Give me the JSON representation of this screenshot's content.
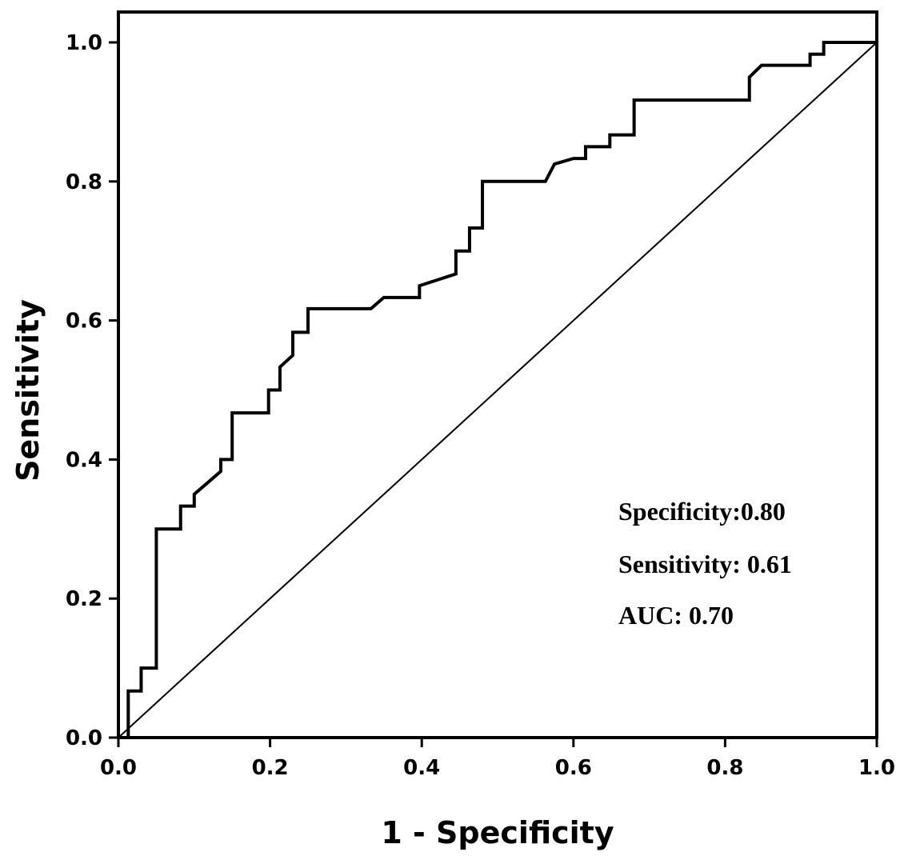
{
  "chart_data": {
    "type": "line",
    "title": "",
    "xlabel": "1 - Specificity",
    "ylabel": "Sensitivity",
    "xlim": [
      0,
      1
    ],
    "ylim": [
      0,
      1
    ],
    "xticks": [
      "0.0",
      "0.2",
      "0.4",
      "0.6",
      "0.8",
      "1.0"
    ],
    "yticks": [
      "0.0",
      "0.2",
      "0.4",
      "0.6",
      "0.8",
      "1.0"
    ],
    "grid": false,
    "annotations": [
      "Specificity:0.80",
      "Sensitivity: 0.61",
      "AUC: 0.70"
    ],
    "series": [
      {
        "x": [
          0,
          0.013,
          0.013,
          0.03,
          0.03,
          0.05,
          0.05,
          0.082,
          0.082,
          0.1,
          0.1,
          0.135,
          0.135,
          0.15,
          0.15,
          0.198,
          0.198,
          0.213,
          0.213,
          0.23,
          0.23,
          0.25,
          0.25,
          0.333,
          0.35,
          0.397,
          0.397,
          0.445,
          0.445,
          0.463,
          0.463,
          0.48,
          0.48,
          0.563,
          0.575,
          0.6,
          0.6,
          0.616,
          0.616,
          0.648,
          0.648,
          0.68,
          0.68,
          0.832,
          0.832,
          0.848,
          0.848,
          0.912,
          0.912,
          0.93,
          0.93,
          1.0
        ],
        "y": [
          0,
          0,
          0.067,
          0.067,
          0.1,
          0.1,
          0.3,
          0.3,
          0.333,
          0.333,
          0.35,
          0.383,
          0.4,
          0.4,
          0.467,
          0.467,
          0.5,
          0.5,
          0.533,
          0.55,
          0.583,
          0.583,
          0.617,
          0.617,
          0.633,
          0.633,
          0.65,
          0.667,
          0.7,
          0.7,
          0.733,
          0.733,
          0.8,
          0.8,
          0.825,
          0.833,
          0.833,
          0.833,
          0.85,
          0.85,
          0.867,
          0.867,
          0.917,
          0.917,
          0.95,
          0.967,
          0.967,
          0.967,
          0.983,
          0.983,
          1.0,
          1.0
        ]
      },
      {
        "x": [
          0,
          1
        ],
        "y": [
          0,
          1
        ]
      }
    ]
  }
}
